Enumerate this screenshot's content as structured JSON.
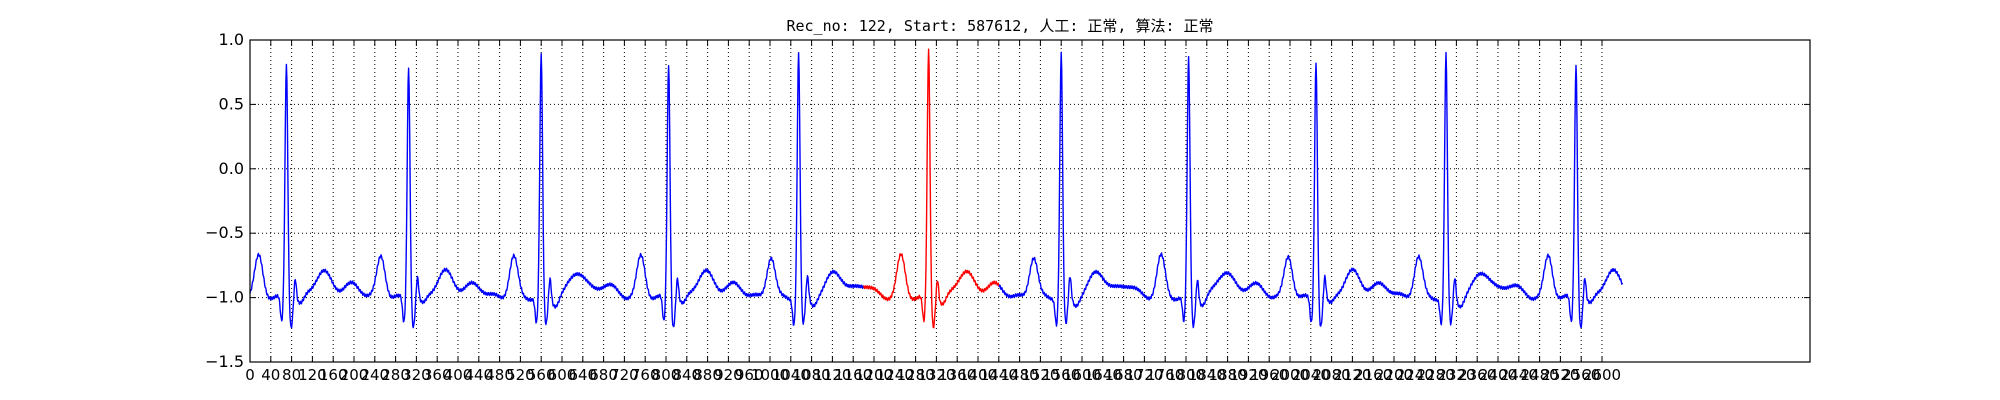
{
  "chart_data": {
    "type": "line",
    "title": "Rec_no: 122, Start: 587612, 人工: 正常, 算法: 正常",
    "xlabel": "",
    "ylabel": "",
    "xlim": [
      0,
      3000
    ],
    "ylim": [
      -1.5,
      1.0
    ],
    "grid": true,
    "y_ticks": [
      1.0,
      0.5,
      0.0,
      -0.5,
      -1.0,
      -1.5
    ],
    "y_tick_labels": [
      "1.0",
      "0.5",
      "0.0",
      "−0.5",
      "−1.0",
      "−1.5"
    ],
    "x_tick_labels": [
      "0",
      "40",
      "80",
      "120",
      "160",
      "200",
      "240",
      "280",
      "320",
      "360",
      "400",
      "440",
      "480",
      "520",
      "560",
      "600",
      "640",
      "680",
      "720",
      "760",
      "800",
      "840",
      "880",
      "920",
      "960",
      "1000",
      "1040",
      "1080",
      "1120",
      "1160",
      "1200",
      "1240",
      "1280",
      "1320",
      "1360",
      "1400",
      "1440",
      "1480",
      "1520",
      "1560",
      "1600",
      "1640",
      "1680",
      "1720",
      "1760",
      "1800",
      "1840",
      "1880",
      "1920",
      "1960",
      "2000",
      "2040",
      "2080",
      "2120",
      "2160",
      "2200",
      "2240",
      "2280",
      "2320",
      "2360",
      "2400",
      "2440",
      "2480",
      "2520",
      "2560",
      "2600"
    ],
    "r_peaks": [
      70,
      305,
      560,
      805,
      1055,
      1305,
      1560,
      1805,
      2050,
      2300,
      2550
    ],
    "r_amplitudes": [
      0.82,
      0.8,
      0.88,
      0.82,
      0.9,
      0.92,
      0.9,
      0.85,
      0.85,
      0.88,
      0.82
    ],
    "x_end": 2640,
    "series": [
      {
        "color": "#0000ff",
        "x_range": [
          0,
          1180
        ]
      },
      {
        "color": "#ff0000",
        "x_range": [
          1180,
          1440
        ]
      },
      {
        "color": "#0000ff",
        "x_range": [
          1440,
          2640
        ]
      }
    ]
  }
}
